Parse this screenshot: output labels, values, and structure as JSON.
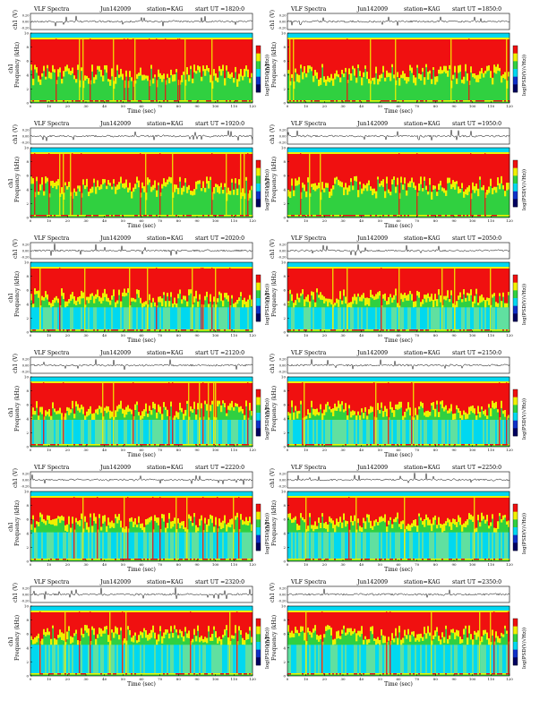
{
  "header": {
    "title": "VLF Spectra",
    "station": "station=KAG",
    "utc_label": "start UT ="
  },
  "labels": {
    "amp_axis": "ch1 (V)",
    "spec_axis_line1": "ch1",
    "spec_axis_line2": "Frequency (kHz)",
    "x_axis": "Time (sec)",
    "colorbar": "log(PSD(V/√Hz))"
  },
  "colors": {
    "low": "#1030c8",
    "mid_low": "#00d8f0",
    "mid": "#30d040",
    "mid_high": "#f0f000",
    "high": "#f01010"
  },
  "chart_data": [
    {
      "type": "heatmap",
      "date": "Jun142009",
      "start_ut": "1820:0",
      "x_ticks": [
        0,
        10,
        20,
        30,
        40,
        50,
        60,
        70,
        80,
        90,
        100,
        110,
        120
      ],
      "y_ticks": [
        0,
        2,
        4,
        6,
        8,
        10
      ],
      "amp_ticks": [
        "0.20",
        "0.00",
        "-0.20"
      ],
      "intensity": 0.85
    },
    {
      "type": "heatmap",
      "date": "Jun142009",
      "start_ut": "1850:0",
      "x_ticks": [
        0,
        10,
        20,
        30,
        40,
        50,
        60,
        70,
        80,
        90,
        100,
        110,
        120
      ],
      "y_ticks": [
        0,
        2,
        4,
        6,
        8,
        10
      ],
      "amp_ticks": [
        "0.20",
        "0.00",
        "-0.20"
      ],
      "intensity": 0.85
    },
    {
      "type": "heatmap",
      "date": "Jun142009",
      "start_ut": "1920:0",
      "x_ticks": [
        0,
        10,
        20,
        30,
        40,
        50,
        60,
        70,
        80,
        90,
        100,
        110,
        120
      ],
      "y_ticks": [
        0,
        2,
        4,
        6,
        8,
        10
      ],
      "amp_ticks": [
        "0.20",
        "0.00",
        "-0.20"
      ],
      "intensity": 0.75
    },
    {
      "type": "heatmap",
      "date": "Jun142009",
      "start_ut": "1950:0",
      "x_ticks": [
        0,
        10,
        20,
        30,
        40,
        50,
        60,
        70,
        80,
        90,
        100,
        110,
        120
      ],
      "y_ticks": [
        0,
        2,
        4,
        6,
        8,
        10
      ],
      "amp_ticks": [
        "0.20",
        "0.00",
        "-0.20"
      ],
      "intensity": 0.75
    },
    {
      "type": "heatmap",
      "date": "Jun142009",
      "start_ut": "2020:0",
      "x_ticks": [
        0,
        10,
        20,
        30,
        40,
        50,
        60,
        70,
        80,
        90,
        100,
        110,
        120
      ],
      "y_ticks": [
        0,
        2,
        4,
        6,
        8,
        10
      ],
      "amp_ticks": [
        "0.20",
        "0.00",
        "-0.20"
      ],
      "intensity": 0.65
    },
    {
      "type": "heatmap",
      "date": "Jun142009",
      "start_ut": "2050:0",
      "x_ticks": [
        0,
        10,
        20,
        30,
        40,
        50,
        60,
        70,
        80,
        90,
        100,
        110,
        120
      ],
      "y_ticks": [
        0,
        2,
        4,
        6,
        8,
        10
      ],
      "amp_ticks": [
        "0.20",
        "0.00",
        "-0.20"
      ],
      "intensity": 0.65
    },
    {
      "type": "heatmap",
      "date": "Jun142009",
      "start_ut": "2120:0",
      "x_ticks": [
        0,
        10,
        20,
        30,
        40,
        50,
        60,
        70,
        80,
        90,
        100,
        110,
        120
      ],
      "y_ticks": [
        0,
        2,
        4,
        6,
        8,
        10
      ],
      "amp_ticks": [
        "0.20",
        "0.00",
        "-0.20"
      ],
      "intensity": 0.55
    },
    {
      "type": "heatmap",
      "date": "Jun142009",
      "start_ut": "2150:0",
      "x_ticks": [
        0,
        10,
        20,
        30,
        40,
        50,
        60,
        70,
        80,
        90,
        100,
        110,
        120
      ],
      "y_ticks": [
        0,
        2,
        4,
        6,
        8,
        10
      ],
      "amp_ticks": [
        "0.20",
        "0.00",
        "-0.20"
      ],
      "intensity": 0.55
    },
    {
      "type": "heatmap",
      "date": "Jun142009",
      "start_ut": "2220:0",
      "x_ticks": [
        0,
        10,
        20,
        30,
        40,
        50,
        60,
        70,
        80,
        90,
        100,
        110,
        120
      ],
      "y_ticks": [
        0,
        2,
        4,
        6,
        8,
        10
      ],
      "amp_ticks": [
        "0.20",
        "0.00",
        "-0.20"
      ],
      "intensity": 0.45
    },
    {
      "type": "heatmap",
      "date": "Jun142009",
      "start_ut": "2250:0",
      "x_ticks": [
        0,
        10,
        20,
        30,
        40,
        50,
        60,
        70,
        80,
        90,
        100,
        110,
        120
      ],
      "y_ticks": [
        0,
        2,
        4,
        6,
        8,
        10
      ],
      "amp_ticks": [
        "0.20",
        "0.00",
        "-0.20"
      ],
      "intensity": 0.45
    },
    {
      "type": "heatmap",
      "date": "Jun142009",
      "start_ut": "2320:0",
      "x_ticks": [
        0,
        10,
        20,
        30,
        40,
        50,
        60,
        70,
        80,
        90,
        100,
        110,
        120
      ],
      "y_ticks": [
        0,
        2,
        4,
        6,
        8,
        10
      ],
      "amp_ticks": [
        "0.20",
        "0.00",
        "-0.20"
      ],
      "intensity": 0.35
    },
    {
      "type": "heatmap",
      "date": "Jun142009",
      "start_ut": "2350:0",
      "x_ticks": [
        0,
        10,
        20,
        30,
        40,
        50,
        60,
        70,
        80,
        90,
        100,
        110,
        120
      ],
      "y_ticks": [
        0,
        2,
        4,
        6,
        8,
        10
      ],
      "amp_ticks": [
        "0.20",
        "0.00",
        "-0.20"
      ],
      "intensity": 0.35
    }
  ]
}
